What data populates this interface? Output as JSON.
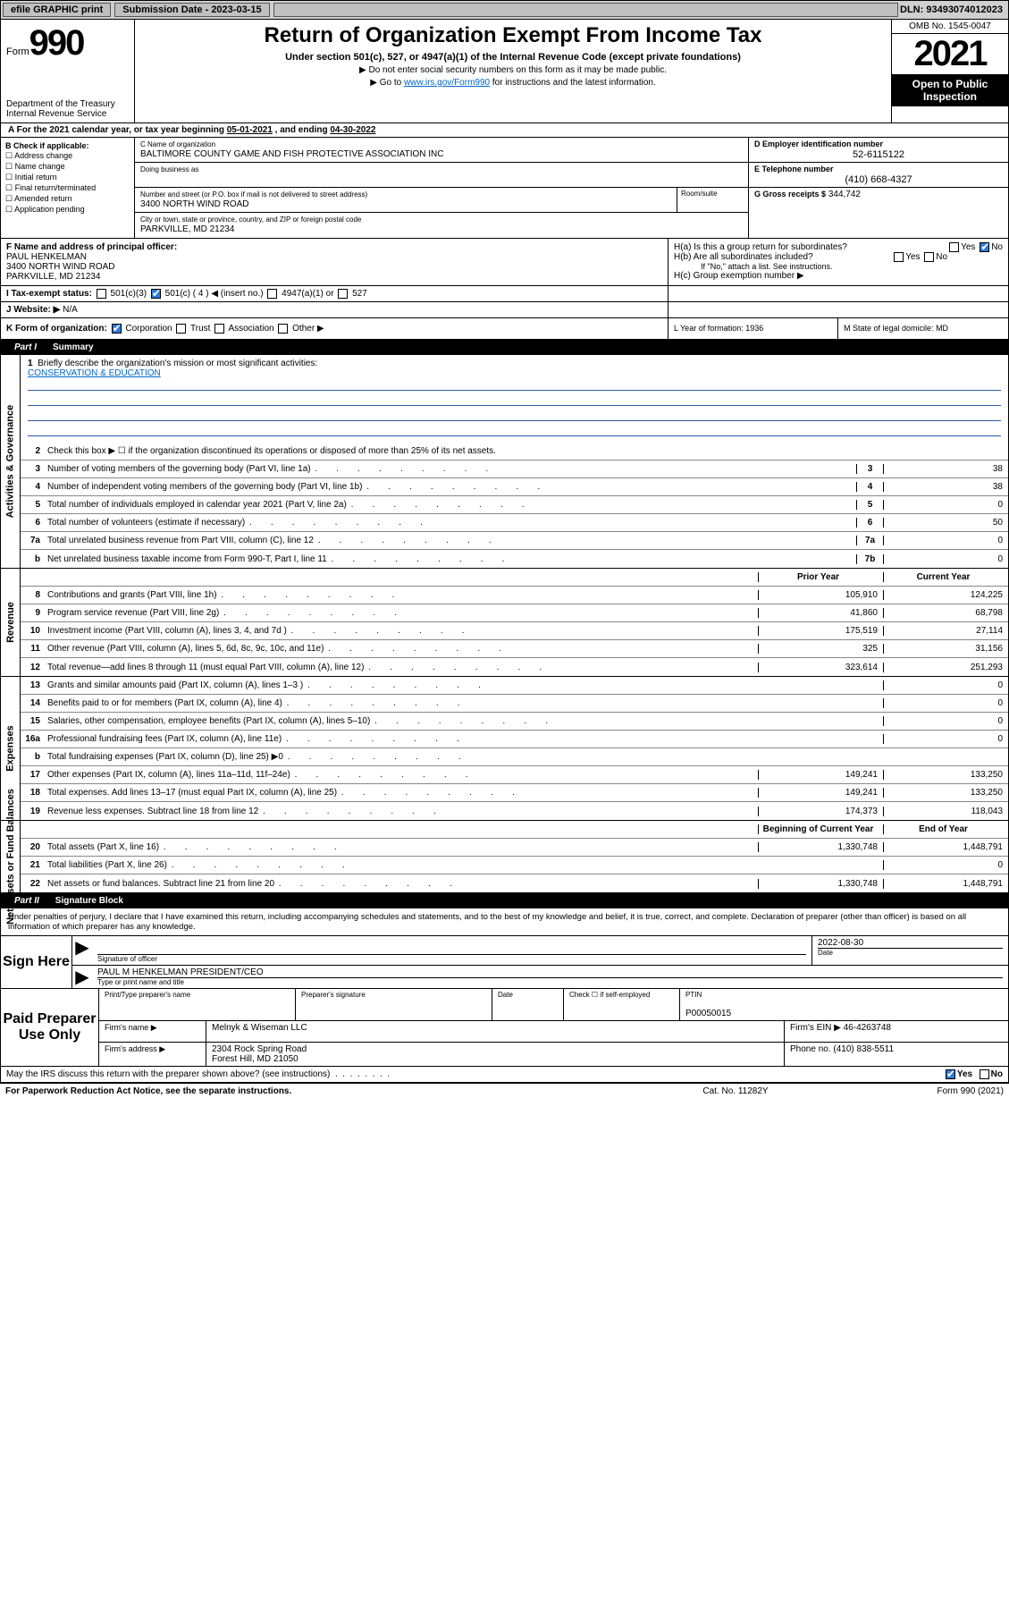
{
  "topbar": {
    "efile": "efile GRAPHIC print",
    "sub_label": "Submission Date - 2023-03-15",
    "dln": "DLN: 93493074012023"
  },
  "header": {
    "form_word": "Form",
    "form_num": "990",
    "dept": "Department of the Treasury",
    "irs": "Internal Revenue Service",
    "title": "Return of Organization Exempt From Income Tax",
    "sub": "Under section 501(c), 527, or 4947(a)(1) of the Internal Revenue Code (except private foundations)",
    "note1": "Do not enter social security numbers on this form as it may be made public.",
    "note2_pre": "Go to ",
    "note2_link": "www.irs.gov/Form990",
    "note2_post": " for instructions and the latest information.",
    "omb": "OMB No. 1545-0047",
    "year": "2021",
    "open": "Open to Public Inspection"
  },
  "lineA": {
    "pre": "A For the 2021 calendar year, or tax year beginning ",
    "begin": "05-01-2021",
    "mid": " , and ending ",
    "end": "04-30-2022"
  },
  "B": {
    "label": "B Check if applicable:",
    "opts": [
      "Address change",
      "Name change",
      "Initial return",
      "Final return/terminated",
      "Amended return",
      "Application pending"
    ]
  },
  "C": {
    "name_label": "C Name of organization",
    "name": "BALTIMORE COUNTY GAME AND FISH PROTECTIVE ASSOCIATION INC",
    "dba_label": "Doing business as",
    "dba": "",
    "street_label": "Number and street (or P.O. box if mail is not delivered to street address)",
    "room_label": "Room/suite",
    "street": "3400 NORTH WIND ROAD",
    "city_label": "City or town, state or province, country, and ZIP or foreign postal code",
    "city": "PARKVILLE, MD  21234"
  },
  "D": {
    "label": "D Employer identification number",
    "val": "52-6115122"
  },
  "E": {
    "label": "E Telephone number",
    "val": "(410) 668-4327"
  },
  "G": {
    "label": "G Gross receipts $",
    "val": "344,742"
  },
  "F": {
    "label": "F Name and address of principal officer:",
    "name": "PAUL HENKELMAN",
    "addr1": "3400 NORTH WIND ROAD",
    "addr2": "PARKVILLE, MD  21234"
  },
  "H": {
    "a": "H(a)  Is this a group return for subordinates?",
    "b": "H(b)  Are all subordinates included?",
    "b_note": "If \"No,\" attach a list. See instructions.",
    "c": "H(c)  Group exemption number ▶",
    "yes": "Yes",
    "no": "No"
  },
  "I": {
    "label": "I  Tax-exempt status:",
    "o1": "501(c)(3)",
    "o2": "501(c) ( 4 ) ◀ (insert no.)",
    "o3": "4947(a)(1) or",
    "o4": "527"
  },
  "J": {
    "label": "J  Website: ▶",
    "val": "N/A"
  },
  "K": {
    "label": "K Form of organization:",
    "o1": "Corporation",
    "o2": "Trust",
    "o3": "Association",
    "o4": "Other ▶"
  },
  "L": {
    "label": "L Year of formation:",
    "val": "1936"
  },
  "M": {
    "label": "M State of legal domicile:",
    "val": "MD"
  },
  "part1": {
    "bar": "Part I",
    "title": "Summary",
    "side_ag": "Activities & Governance",
    "side_rev": "Revenue",
    "side_exp": "Expenses",
    "side_na": "Net Assets or Fund Balances",
    "l1": "Briefly describe the organization's mission or most significant activities:",
    "l1v": "CONSERVATION & EDUCATION",
    "l2": "Check this box ▶ ☐  if the organization discontinued its operations or disposed of more than 25% of its net assets.",
    "rows_ag": [
      {
        "n": "3",
        "d": "Number of voting members of the governing body (Part VI, line 1a)",
        "box": "3",
        "v": "38"
      },
      {
        "n": "4",
        "d": "Number of independent voting members of the governing body (Part VI, line 1b)",
        "box": "4",
        "v": "38"
      },
      {
        "n": "5",
        "d": "Total number of individuals employed in calendar year 2021 (Part V, line 2a)",
        "box": "5",
        "v": "0"
      },
      {
        "n": "6",
        "d": "Total number of volunteers (estimate if necessary)",
        "box": "6",
        "v": "50"
      },
      {
        "n": "7a",
        "d": "Total unrelated business revenue from Part VIII, column (C), line 12",
        "box": "7a",
        "v": "0"
      },
      {
        "n": "b",
        "d": "Net unrelated business taxable income from Form 990-T, Part I, line 11",
        "box": "7b",
        "v": "0"
      }
    ],
    "col_py": "Prior Year",
    "col_cy": "Current Year",
    "rows_rev": [
      {
        "n": "8",
        "d": "Contributions and grants (Part VIII, line 1h)",
        "py": "105,910",
        "cy": "124,225"
      },
      {
        "n": "9",
        "d": "Program service revenue (Part VIII, line 2g)",
        "py": "41,860",
        "cy": "68,798"
      },
      {
        "n": "10",
        "d": "Investment income (Part VIII, column (A), lines 3, 4, and 7d )",
        "py": "175,519",
        "cy": "27,114"
      },
      {
        "n": "11",
        "d": "Other revenue (Part VIII, column (A), lines 5, 6d, 8c, 9c, 10c, and 11e)",
        "py": "325",
        "cy": "31,156"
      },
      {
        "n": "12",
        "d": "Total revenue—add lines 8 through 11 (must equal Part VIII, column (A), line 12)",
        "py": "323,614",
        "cy": "251,293"
      }
    ],
    "rows_exp": [
      {
        "n": "13",
        "d": "Grants and similar amounts paid (Part IX, column (A), lines 1–3 )",
        "py": "",
        "cy": "0"
      },
      {
        "n": "14",
        "d": "Benefits paid to or for members (Part IX, column (A), line 4)",
        "py": "",
        "cy": "0"
      },
      {
        "n": "15",
        "d": "Salaries, other compensation, employee benefits (Part IX, column (A), lines 5–10)",
        "py": "",
        "cy": "0"
      },
      {
        "n": "16a",
        "d": "Professional fundraising fees (Part IX, column (A), line 11e)",
        "py": "",
        "cy": "0"
      },
      {
        "n": "b",
        "d": "Total fundraising expenses (Part IX, column (D), line 25) ▶0",
        "py": "shade",
        "cy": "shade"
      },
      {
        "n": "17",
        "d": "Other expenses (Part IX, column (A), lines 11a–11d, 11f–24e)",
        "py": "149,241",
        "cy": "133,250"
      },
      {
        "n": "18",
        "d": "Total expenses. Add lines 13–17 (must equal Part IX, column (A), line 25)",
        "py": "149,241",
        "cy": "133,250"
      },
      {
        "n": "19",
        "d": "Revenue less expenses. Subtract line 18 from line 12",
        "py": "174,373",
        "cy": "118,043"
      }
    ],
    "col_boy": "Beginning of Current Year",
    "col_eoy": "End of Year",
    "rows_na": [
      {
        "n": "20",
        "d": "Total assets (Part X, line 16)",
        "py": "1,330,748",
        "cy": "1,448,791"
      },
      {
        "n": "21",
        "d": "Total liabilities (Part X, line 26)",
        "py": "",
        "cy": "0"
      },
      {
        "n": "22",
        "d": "Net assets or fund balances. Subtract line 21 from line 20",
        "py": "1,330,748",
        "cy": "1,448,791"
      }
    ]
  },
  "part2": {
    "bar": "Part II",
    "title": "Signature Block",
    "intro": "Under penalties of perjury, I declare that I have examined this return, including accompanying schedules and statements, and to the best of my knowledge and belief, it is true, correct, and complete. Declaration of preparer (other than officer) is based on all information of which preparer has any knowledge.",
    "sign_here": "Sign Here",
    "sig_of_officer": "Signature of officer",
    "sig_date": "2022-08-30",
    "date_lbl": "Date",
    "officer_name": "PAUL M HENKELMAN  PRESIDENT/CEO",
    "type_name": "Type or print name and title",
    "paid": "Paid Preparer Use Only",
    "pt_name_lbl": "Print/Type preparer's name",
    "pt_sig_lbl": "Preparer's signature",
    "pt_date_lbl": "Date",
    "pt_check": "Check ☐ if self-employed",
    "ptin_lbl": "PTIN",
    "ptin": "P00050015",
    "firm_name_lbl": "Firm's name    ▶",
    "firm_name": "Melnyk & Wiseman LLC",
    "firm_ein_lbl": "Firm's EIN ▶",
    "firm_ein": "46-4263748",
    "firm_addr_lbl": "Firm's address ▶",
    "firm_addr1": "2304 Rock Spring Road",
    "firm_addr2": "Forest Hill, MD  21050",
    "phone_lbl": "Phone no.",
    "phone": "(410) 838-5511",
    "may": "May the IRS discuss this return with the preparer shown above? (see instructions)"
  },
  "footer": {
    "left": "For Paperwork Reduction Act Notice, see the separate instructions.",
    "mid": "Cat. No. 11282Y",
    "right": "Form 990 (2021)"
  }
}
